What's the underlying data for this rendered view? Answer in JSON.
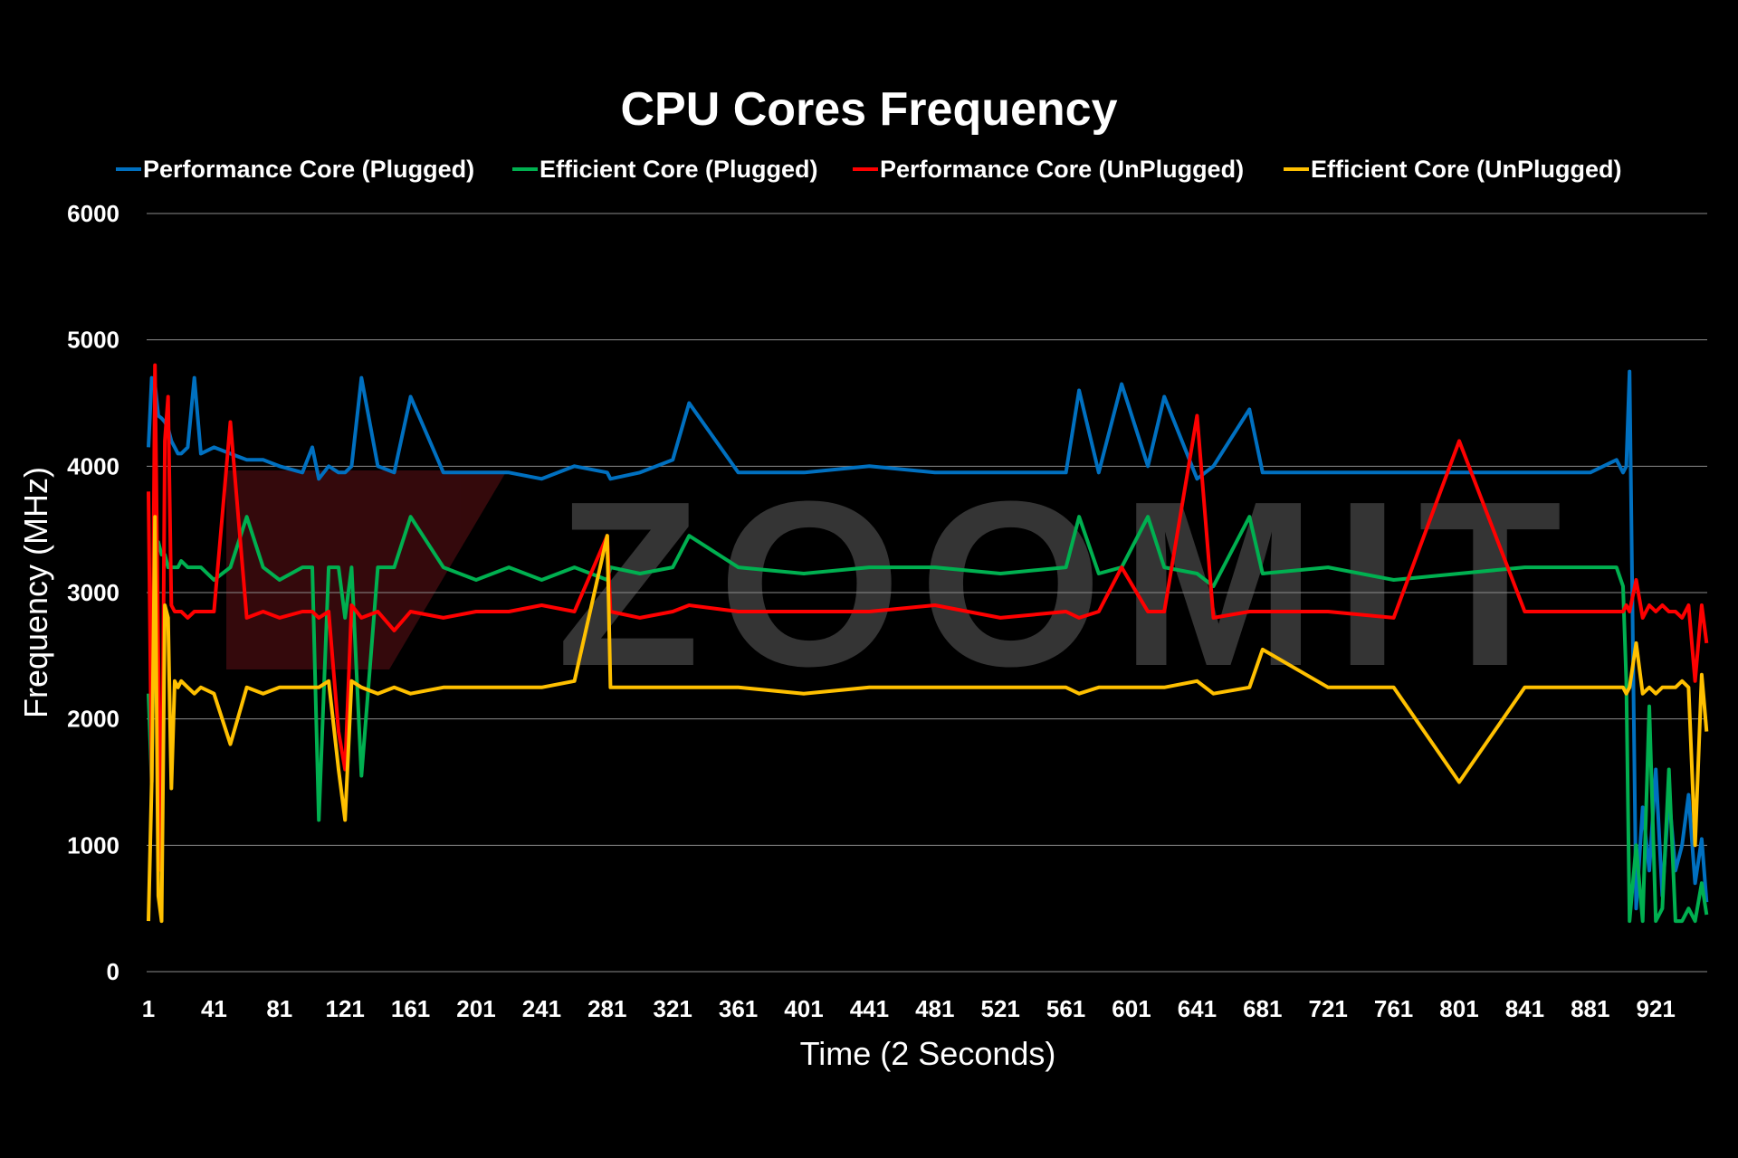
{
  "chart_data": {
    "type": "line",
    "title": "CPU Cores Frequency",
    "xlabel": "Time (2 Seconds)",
    "ylabel": "Frequency (MHz)",
    "ylim": [
      0,
      6000
    ],
    "xlim": [
      1,
      952
    ],
    "yticks": [
      "0",
      "1000",
      "2000",
      "3000",
      "4000",
      "5000",
      "6000"
    ],
    "xticks": [
      "1",
      "41",
      "81",
      "121",
      "161",
      "201",
      "241",
      "281",
      "321",
      "361",
      "401",
      "441",
      "481",
      "521",
      "561",
      "601",
      "641",
      "681",
      "721",
      "761",
      "801",
      "841",
      "881",
      "921"
    ],
    "grid": true,
    "legend_position": "top",
    "watermark": "ZOOMIT",
    "x": [
      1,
      3,
      5,
      7,
      9,
      11,
      13,
      15,
      17,
      19,
      21,
      25,
      29,
      33,
      41,
      51,
      61,
      71,
      81,
      95,
      101,
      105,
      111,
      117,
      121,
      125,
      131,
      141,
      151,
      161,
      181,
      201,
      221,
      241,
      261,
      281,
      283,
      301,
      321,
      331,
      361,
      401,
      441,
      481,
      521,
      561,
      569,
      581,
      595,
      611,
      621,
      641,
      651,
      673,
      681,
      721,
      761,
      801,
      841,
      881,
      897,
      901,
      903,
      905,
      909,
      913,
      917,
      921,
      925,
      929,
      933,
      937,
      941,
      945,
      949,
      952
    ],
    "series": [
      {
        "name": "Performance Core (Plugged)",
        "color": "#0070c0",
        "values": [
          4150,
          4700,
          4650,
          4400,
          4380,
          4350,
          4300,
          4200,
          4150,
          4100,
          4100,
          4150,
          4700,
          4100,
          4150,
          4100,
          4050,
          4050,
          4000,
          3950,
          4150,
          3900,
          4000,
          3950,
          3950,
          4000,
          4700,
          4000,
          3950,
          4550,
          3950,
          3950,
          3950,
          3900,
          4000,
          3950,
          3900,
          3950,
          4050,
          4500,
          3950,
          3950,
          4000,
          3950,
          3950,
          3950,
          4600,
          3950,
          4650,
          4000,
          4550,
          3900,
          4000,
          4450,
          3950,
          3950,
          3950,
          3950,
          3950,
          3950,
          4050,
          3950,
          4000,
          4750,
          500,
          1300,
          800,
          1600,
          600,
          1400,
          800,
          1000,
          1400,
          700,
          1050,
          550
        ]
      },
      {
        "name": "Efficient Core (Plugged)",
        "color": "#00b050",
        "values": [
          2200,
          1500,
          3400,
          3400,
          3300,
          3300,
          3200,
          3200,
          3200,
          3200,
          3250,
          3200,
          3200,
          3200,
          3100,
          3200,
          3600,
          3200,
          3100,
          3200,
          3200,
          1200,
          3200,
          3200,
          2800,
          3200,
          1550,
          3200,
          3200,
          3600,
          3200,
          3100,
          3200,
          3100,
          3200,
          3100,
          3200,
          3150,
          3200,
          3450,
          3200,
          3150,
          3200,
          3200,
          3150,
          3200,
          3600,
          3150,
          3200,
          3600,
          3200,
          3150,
          3050,
          3600,
          3150,
          3200,
          3100,
          3150,
          3200,
          3200,
          3200,
          3050,
          2300,
          400,
          1000,
          400,
          2100,
          400,
          500,
          1600,
          400,
          400,
          500,
          400,
          700,
          450
        ]
      },
      {
        "name": "Performance Core (UnPlugged)",
        "color": "#ff0000",
        "values": [
          3800,
          1500,
          4800,
          2500,
          800,
          4200,
          4550,
          2900,
          2850,
          2850,
          2850,
          2800,
          2850,
          2850,
          2850,
          4350,
          2800,
          2850,
          2800,
          2850,
          2850,
          2800,
          2850,
          1900,
          1600,
          2900,
          2800,
          2850,
          2700,
          2850,
          2800,
          2850,
          2850,
          2900,
          2850,
          3450,
          2850,
          2800,
          2850,
          2900,
          2850,
          2850,
          2850,
          2900,
          2800,
          2850,
          2800,
          2850,
          3200,
          2850,
          2850,
          4400,
          2800,
          2850,
          2850,
          2850,
          2800,
          4200,
          2850,
          2850,
          2850,
          2850,
          2900,
          2850,
          3100,
          2800,
          2900,
          2850,
          2900,
          2850,
          2850,
          2800,
          2900,
          2300,
          2900,
          2600
        ]
      },
      {
        "name": "Efficient Core (UnPlugged)",
        "color": "#ffc000",
        "values": [
          400,
          1500,
          3600,
          600,
          400,
          2900,
          2800,
          1450,
          2300,
          2250,
          2300,
          2250,
          2200,
          2250,
          2200,
          1800,
          2250,
          2200,
          2250,
          2250,
          2250,
          2250,
          2300,
          1600,
          1200,
          2300,
          2250,
          2200,
          2250,
          2200,
          2250,
          2250,
          2250,
          2250,
          2300,
          3450,
          2250,
          2250,
          2250,
          2250,
          2250,
          2200,
          2250,
          2250,
          2250,
          2250,
          2200,
          2250,
          2250,
          2250,
          2250,
          2300,
          2200,
          2250,
          2550,
          2250,
          2250,
          1500,
          2250,
          2250,
          2250,
          2250,
          2200,
          2250,
          2600,
          2200,
          2250,
          2200,
          2250,
          2250,
          2250,
          2300,
          2250,
          1000,
          2350,
          1900
        ]
      }
    ]
  }
}
